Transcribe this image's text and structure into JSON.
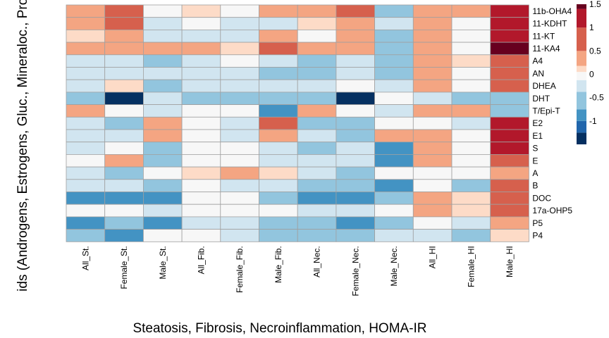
{
  "chart_data": {
    "type": "heatmap",
    "xlabel": "Steatosis, Fibrosis, Necroinflammation, HOMA-IR",
    "ylabel": "ids (Androgens, Estrogens, Gluc., Mineraloc., Prog",
    "columns": [
      "All_St.",
      "Female_St.",
      "Male_St.",
      "All_Fib.",
      "Female_Fib.",
      "Male_Fib.",
      "All_Nec.",
      "Female_Nec.",
      "Male_Nec.",
      "All_HI",
      "Female_HI",
      "Male_HI"
    ],
    "rows": [
      "11b-OHA4",
      "11-KDHT",
      "11-KT",
      "11-KA4",
      "A4",
      "AN",
      "DHEA",
      "DHT",
      "T/Epi-T",
      "E2",
      "E1",
      "S",
      "E",
      "A",
      "B",
      "DOC",
      "17a-OHP5",
      "P5",
      "P4"
    ],
    "values": [
      [
        0.25,
        0.75,
        0,
        0.1,
        0,
        0.25,
        0.25,
        0.75,
        -0.5,
        0.25,
        0.25,
        1.25
      ],
      [
        0.25,
        0.75,
        -0.25,
        0,
        -0.25,
        -0.25,
        0.1,
        0.25,
        -0.25,
        0.25,
        0,
        1.25
      ],
      [
        0.1,
        0.25,
        -0.25,
        -0.25,
        -0.25,
        0.25,
        0,
        0.25,
        -0.5,
        0.25,
        0,
        1.25
      ],
      [
        0.25,
        0.25,
        0.25,
        0.25,
        0.1,
        0.75,
        0.25,
        0.25,
        -0.5,
        0.25,
        0,
        1.5
      ],
      [
        -0.25,
        -0.25,
        -0.5,
        -0.25,
        0,
        -0.25,
        -0.5,
        -0.25,
        -0.5,
        0.25,
        0.1,
        0.75
      ],
      [
        -0.25,
        -0.25,
        -0.25,
        -0.25,
        -0.25,
        -0.5,
        -0.5,
        -0.25,
        -0.5,
        0.25,
        0,
        0.75
      ],
      [
        -0.25,
        0.1,
        -0.5,
        -0.25,
        -0.25,
        -0.25,
        -0.25,
        0,
        -0.25,
        0.25,
        0,
        0.75
      ],
      [
        -0.5,
        -1.5,
        -0.25,
        -0.5,
        -0.5,
        -0.5,
        -0.5,
        -1.5,
        0,
        -0.25,
        -0.5,
        -0.5
      ],
      [
        0.25,
        0,
        -0.25,
        0,
        0,
        -1,
        0.25,
        0,
        -0.25,
        0.25,
        0.25,
        -0.5
      ],
      [
        -0.25,
        -0.5,
        0.25,
        0,
        -0.25,
        0.75,
        -0.5,
        -0.5,
        0,
        0,
        -0.25,
        1.25
      ],
      [
        -0.25,
        -0.25,
        0.25,
        0,
        -0.25,
        0.25,
        -0.25,
        -0.5,
        0.25,
        0.25,
        0,
        1.25
      ],
      [
        -0.25,
        0,
        -0.5,
        0,
        0,
        -0.25,
        -0.5,
        -0.25,
        -1,
        0.25,
        0,
        1.25
      ],
      [
        0,
        0.25,
        -0.5,
        0,
        0,
        -0.25,
        -0.25,
        -0.25,
        -1,
        0.25,
        0,
        0.75
      ],
      [
        -0.25,
        -0.5,
        0,
        0.1,
        0.25,
        0.1,
        -0.25,
        -0.5,
        0,
        0,
        0,
        0.25
      ],
      [
        -0.25,
        -0.25,
        -0.5,
        0,
        -0.25,
        -0.25,
        -0.5,
        -0.5,
        -1,
        0,
        -0.5,
        0.75
      ],
      [
        -1,
        -1,
        -1,
        0,
        0,
        -0.5,
        -1,
        -1,
        -0.5,
        0.25,
        0.1,
        0.75
      ],
      [
        0,
        0,
        -0.25,
        0,
        0,
        0,
        -0.25,
        -0.25,
        0,
        0.25,
        0.1,
        0.75
      ],
      [
        -1,
        -0.5,
        -1,
        -0.25,
        -0.25,
        -0.5,
        -0.5,
        -1,
        -0.5,
        0,
        -0.25,
        0.25
      ],
      [
        -0.5,
        -1,
        0,
        0,
        -0.25,
        -0.5,
        -0.5,
        -0.5,
        -0.25,
        -0.25,
        -0.5,
        0.1
      ]
    ],
    "color_scale": {
      "type": "diverging",
      "min": -1.5,
      "max": 1.5,
      "ticks": [
        "1.5",
        "1",
        "0.5",
        "0",
        "-0.5",
        "-1"
      ],
      "tick_values": [
        1.5,
        1,
        0.5,
        0,
        -0.5,
        -1
      ],
      "bins": [
        {
          "from": -1.5,
          "to": -1.25,
          "color": "#053061"
        },
        {
          "from": -1.25,
          "to": -1.0,
          "color": "#2166ac"
        },
        {
          "from": -1.0,
          "to": -0.75,
          "color": "#4393c3"
        },
        {
          "from": -0.75,
          "to": -0.375,
          "color": "#92c5de"
        },
        {
          "from": -0.375,
          "to": -0.125,
          "color": "#d1e5f0"
        },
        {
          "from": -0.125,
          "to": 0.05,
          "color": "#f7f7f7"
        },
        {
          "from": 0.05,
          "to": 0.18,
          "color": "#fddbc7"
        },
        {
          "from": 0.18,
          "to": 0.5,
          "color": "#f4a582"
        },
        {
          "from": 0.5,
          "to": 1.0,
          "color": "#d6604d"
        },
        {
          "from": 1.0,
          "to": 1.4,
          "color": "#b2182b"
        },
        {
          "from": 1.4,
          "to": 1.6,
          "color": "#67001f"
        }
      ]
    },
    "legend_position": "right",
    "grid": true
  }
}
